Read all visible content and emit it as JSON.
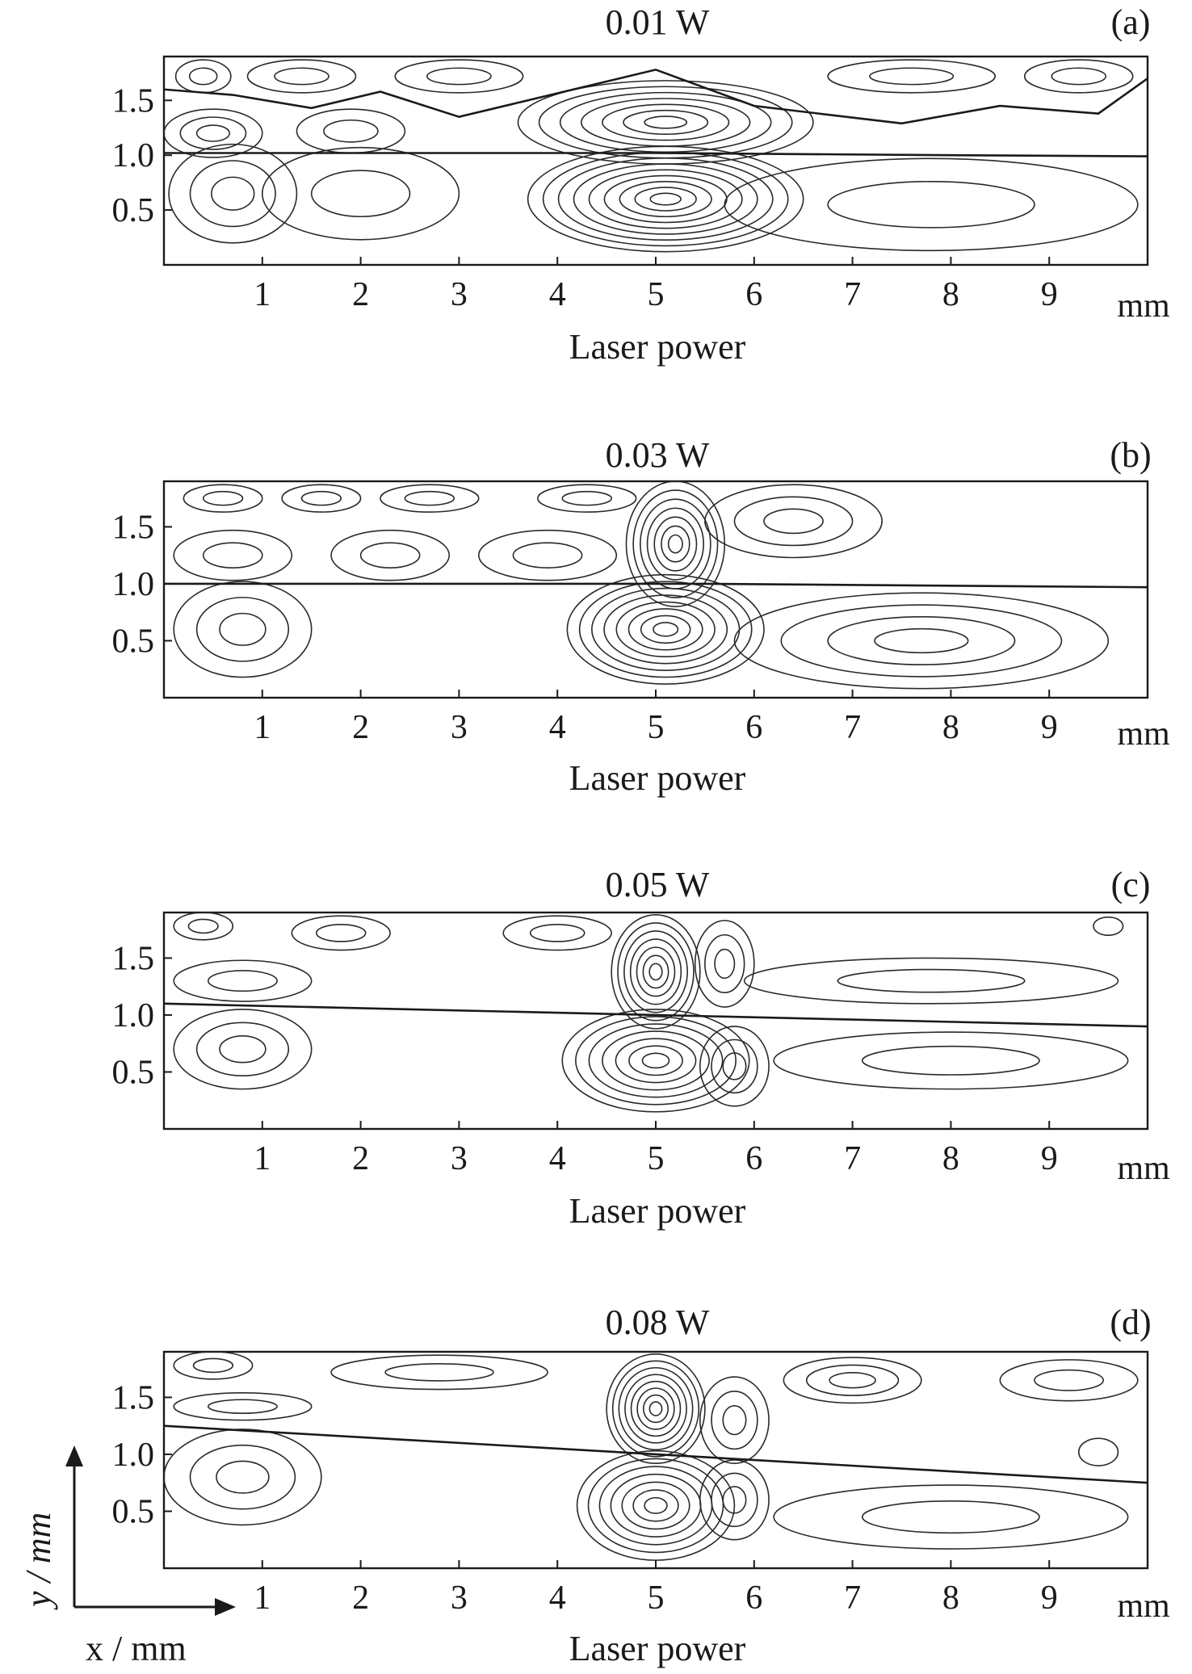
{
  "chart_data": [
    {
      "type": "contour",
      "panel_label": "(a)",
      "title": "0.01 W",
      "xlabel": "Laser power",
      "x_unit": "mm",
      "x_ticks": [
        1,
        2,
        3,
        4,
        5,
        6,
        7,
        8,
        9
      ],
      "y_ticks": [
        0.5,
        1.0,
        1.5
      ],
      "y_tick_labels": [
        "0.5",
        "1.0",
        "1.5"
      ],
      "xlim": [
        0,
        10
      ],
      "ylim": [
        0,
        1.9
      ],
      "interface": [
        [
          0,
          1.02
        ],
        [
          2,
          1.02
        ],
        [
          5,
          1.02
        ],
        [
          8,
          1.0
        ],
        [
          10,
          0.99
        ]
      ],
      "upper_interface": [
        [
          0,
          1.6
        ],
        [
          0.7,
          1.55
        ],
        [
          1.5,
          1.43
        ],
        [
          2.2,
          1.58
        ],
        [
          3,
          1.35
        ],
        [
          5,
          1.78
        ],
        [
          6,
          1.45
        ],
        [
          7.5,
          1.29
        ],
        [
          8.5,
          1.45
        ],
        [
          9.5,
          1.38
        ],
        [
          10,
          1.7
        ]
      ],
      "vortices": [
        {
          "x": 0.4,
          "y": 1.72,
          "rx": 0.28,
          "ry": 0.15,
          "n": 2
        },
        {
          "x": 1.4,
          "y": 1.72,
          "rx": 0.55,
          "ry": 0.15,
          "n": 2
        },
        {
          "x": 3.0,
          "y": 1.72,
          "rx": 0.65,
          "ry": 0.15,
          "n": 2
        },
        {
          "x": 7.6,
          "y": 1.72,
          "rx": 0.85,
          "ry": 0.15,
          "n": 2
        },
        {
          "x": 9.3,
          "y": 1.72,
          "rx": 0.55,
          "ry": 0.15,
          "n": 2
        },
        {
          "x": 0.5,
          "y": 1.2,
          "rx": 0.5,
          "ry": 0.22,
          "n": 3
        },
        {
          "x": 1.9,
          "y": 1.22,
          "rx": 0.55,
          "ry": 0.2,
          "n": 2
        },
        {
          "x": 5.1,
          "y": 1.3,
          "rx": 1.5,
          "ry": 0.38,
          "n": 7
        },
        {
          "x": 0.7,
          "y": 0.65,
          "rx": 0.65,
          "ry": 0.45,
          "n": 3
        },
        {
          "x": 2.0,
          "y": 0.65,
          "rx": 1.0,
          "ry": 0.42,
          "n": 2
        },
        {
          "x": 5.1,
          "y": 0.6,
          "rx": 1.4,
          "ry": 0.48,
          "n": 9
        },
        {
          "x": 7.8,
          "y": 0.55,
          "rx": 2.1,
          "ry": 0.42,
          "n": 2
        }
      ]
    },
    {
      "type": "contour",
      "panel_label": "(b)",
      "title": "0.03 W",
      "xlabel": "Laser power",
      "x_unit": "mm",
      "x_ticks": [
        1,
        2,
        3,
        4,
        5,
        6,
        7,
        8,
        9
      ],
      "y_ticks": [
        0.5,
        1.0,
        1.5
      ],
      "y_tick_labels": [
        "0.5",
        "1.0",
        "1.5"
      ],
      "xlim": [
        0,
        10
      ],
      "ylim": [
        0,
        1.9
      ],
      "interface": [
        [
          0,
          1.0
        ],
        [
          5.5,
          1.0
        ],
        [
          10,
          0.97
        ]
      ],
      "upper_interface": [],
      "vortices": [
        {
          "x": 0.6,
          "y": 1.75,
          "rx": 0.4,
          "ry": 0.12,
          "n": 2
        },
        {
          "x": 1.6,
          "y": 1.75,
          "rx": 0.4,
          "ry": 0.12,
          "n": 2
        },
        {
          "x": 2.7,
          "y": 1.75,
          "rx": 0.5,
          "ry": 0.12,
          "n": 2
        },
        {
          "x": 4.3,
          "y": 1.75,
          "rx": 0.5,
          "ry": 0.12,
          "n": 2
        },
        {
          "x": 0.7,
          "y": 1.25,
          "rx": 0.6,
          "ry": 0.22,
          "n": 2
        },
        {
          "x": 2.3,
          "y": 1.25,
          "rx": 0.6,
          "ry": 0.22,
          "n": 2
        },
        {
          "x": 3.9,
          "y": 1.25,
          "rx": 0.7,
          "ry": 0.22,
          "n": 2
        },
        {
          "x": 5.2,
          "y": 1.35,
          "rx": 0.5,
          "ry": 0.55,
          "n": 7
        },
        {
          "x": 6.4,
          "y": 1.55,
          "rx": 0.9,
          "ry": 0.32,
          "n": 3
        },
        {
          "x": 0.8,
          "y": 0.6,
          "rx": 0.7,
          "ry": 0.42,
          "n": 3
        },
        {
          "x": 5.1,
          "y": 0.6,
          "rx": 1.0,
          "ry": 0.48,
          "n": 8
        },
        {
          "x": 7.7,
          "y": 0.5,
          "rx": 1.9,
          "ry": 0.42,
          "n": 4
        }
      ]
    },
    {
      "type": "contour",
      "panel_label": "(c)",
      "title": "0.05 W",
      "xlabel": "Laser power",
      "x_unit": "mm",
      "x_ticks": [
        1,
        2,
        3,
        4,
        5,
        6,
        7,
        8,
        9
      ],
      "y_ticks": [
        0.5,
        1.0,
        1.5
      ],
      "y_tick_labels": [
        "0.5",
        "1.0",
        "1.5"
      ],
      "xlim": [
        0,
        10
      ],
      "ylim": [
        0,
        1.9
      ],
      "interface": [
        [
          0,
          1.1
        ],
        [
          5,
          1.0
        ],
        [
          10,
          0.9
        ]
      ],
      "upper_interface": [],
      "vortices": [
        {
          "x": 0.4,
          "y": 1.78,
          "rx": 0.3,
          "ry": 0.12,
          "n": 2
        },
        {
          "x": 1.8,
          "y": 1.72,
          "rx": 0.5,
          "ry": 0.15,
          "n": 2
        },
        {
          "x": 4.0,
          "y": 1.72,
          "rx": 0.55,
          "ry": 0.15,
          "n": 2
        },
        {
          "x": 9.6,
          "y": 1.78,
          "rx": 0.15,
          "ry": 0.08,
          "n": 1
        },
        {
          "x": 0.8,
          "y": 1.3,
          "rx": 0.7,
          "ry": 0.18,
          "n": 2
        },
        {
          "x": 5.0,
          "y": 1.38,
          "rx": 0.45,
          "ry": 0.5,
          "n": 7
        },
        {
          "x": 5.7,
          "y": 1.45,
          "rx": 0.3,
          "ry": 0.38,
          "n": 3
        },
        {
          "x": 7.8,
          "y": 1.3,
          "rx": 1.9,
          "ry": 0.2,
          "n": 2
        },
        {
          "x": 0.8,
          "y": 0.7,
          "rx": 0.7,
          "ry": 0.35,
          "n": 3
        },
        {
          "x": 5.0,
          "y": 0.6,
          "rx": 0.95,
          "ry": 0.45,
          "n": 7
        },
        {
          "x": 5.8,
          "y": 0.55,
          "rx": 0.35,
          "ry": 0.35,
          "n": 3
        },
        {
          "x": 8.0,
          "y": 0.6,
          "rx": 1.8,
          "ry": 0.25,
          "n": 2
        }
      ]
    },
    {
      "type": "contour",
      "panel_label": "(d)",
      "title": "0.08 W",
      "xlabel": "Laser power",
      "x_unit": "mm",
      "x_ticks": [
        1,
        2,
        3,
        4,
        5,
        6,
        7,
        8,
        9
      ],
      "y_ticks": [
        0.5,
        1.0,
        1.5
      ],
      "y_tick_labels": [
        "0.5",
        "1.0",
        "1.5"
      ],
      "xlim": [
        0,
        10
      ],
      "ylim": [
        0,
        1.9
      ],
      "interface": [
        [
          0,
          1.25
        ],
        [
          5,
          1.0
        ],
        [
          10,
          0.75
        ]
      ],
      "upper_interface": [],
      "vortices": [
        {
          "x": 0.5,
          "y": 1.78,
          "rx": 0.4,
          "ry": 0.12,
          "n": 2
        },
        {
          "x": 2.8,
          "y": 1.72,
          "rx": 1.1,
          "ry": 0.15,
          "n": 2
        },
        {
          "x": 7.0,
          "y": 1.65,
          "rx": 0.7,
          "ry": 0.2,
          "n": 3
        },
        {
          "x": 9.2,
          "y": 1.65,
          "rx": 0.7,
          "ry": 0.18,
          "n": 2
        },
        {
          "x": 0.8,
          "y": 1.42,
          "rx": 0.7,
          "ry": 0.12,
          "n": 2
        },
        {
          "x": 5.0,
          "y": 1.4,
          "rx": 0.5,
          "ry": 0.48,
          "n": 8
        },
        {
          "x": 5.8,
          "y": 1.3,
          "rx": 0.35,
          "ry": 0.38,
          "n": 3
        },
        {
          "x": 9.5,
          "y": 1.02,
          "rx": 0.2,
          "ry": 0.12,
          "n": 1
        },
        {
          "x": 0.8,
          "y": 0.8,
          "rx": 0.8,
          "ry": 0.42,
          "n": 3
        },
        {
          "x": 5.0,
          "y": 0.55,
          "rx": 0.8,
          "ry": 0.48,
          "n": 7
        },
        {
          "x": 5.8,
          "y": 0.6,
          "rx": 0.35,
          "ry": 0.35,
          "n": 3
        },
        {
          "x": 8.0,
          "y": 0.45,
          "rx": 1.8,
          "ry": 0.28,
          "n": 2
        }
      ]
    }
  ],
  "corner_axes": {
    "y_label": "y / mm",
    "x_label": "x / mm"
  }
}
